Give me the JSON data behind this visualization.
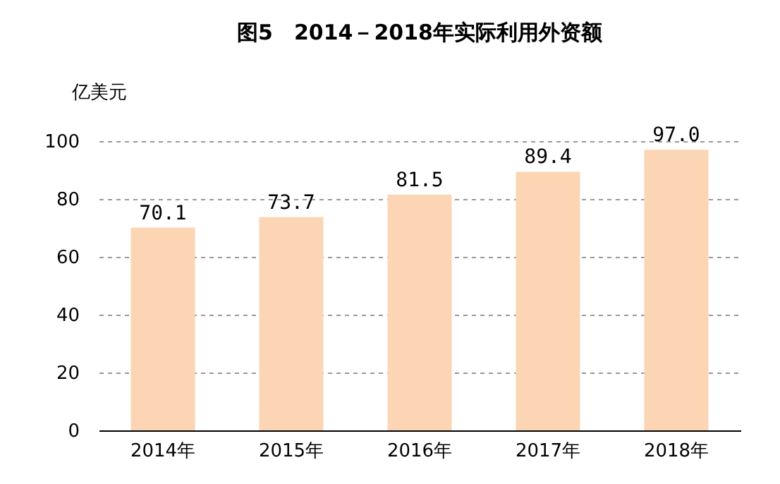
{
  "chart_data": {
    "type": "bar",
    "title": "图5　2014－2018年实际利用外资额",
    "ylabel": "亿美元",
    "categories": [
      "2014年",
      "2015年",
      "2016年",
      "2017年",
      "2018年"
    ],
    "values": [
      70.1,
      73.7,
      81.5,
      89.4,
      97.0
    ],
    "value_labels": [
      "70.1",
      "73.7",
      "81.5",
      "89.4",
      "97.0"
    ],
    "color": "#fcd5b4",
    "ylim": [
      0,
      100
    ],
    "yticks": [
      0,
      20,
      40,
      60,
      80,
      100
    ],
    "grid": "y"
  }
}
